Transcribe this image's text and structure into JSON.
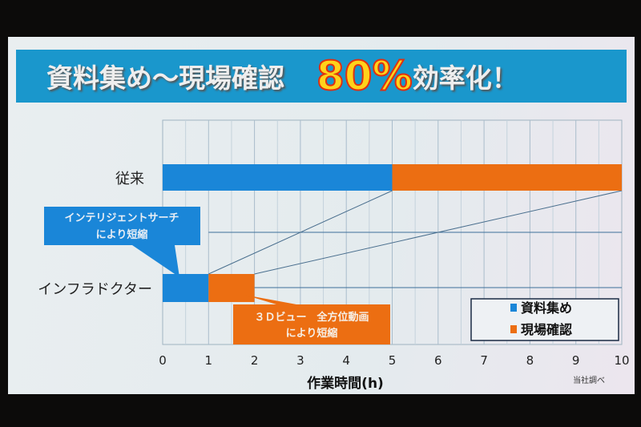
{
  "title": {
    "main": "資料集め～現場確認",
    "highlight": "80%",
    "suffix": "効率化！"
  },
  "chart_data": {
    "type": "bar",
    "orientation": "horizontal-stacked",
    "categories": [
      "従来",
      "インフラドクター"
    ],
    "series": [
      {
        "name": "資料集め",
        "values": [
          5,
          1
        ],
        "color": "#1a86d8"
      },
      {
        "name": "現場確認",
        "values": [
          5,
          1
        ],
        "color": "#ec6e12"
      }
    ],
    "xlabel": "作業時間(h)",
    "xlim": [
      0,
      10
    ],
    "xticks": [
      "0",
      "1",
      "2",
      "3",
      "4",
      "5",
      "6",
      "7",
      "8",
      "9",
      "10"
    ],
    "grid": true,
    "legend": "bottom-right",
    "annotations": [
      {
        "lines": [
          "インテリジェントサーチ",
          "により短縮"
        ],
        "color": "#1a86d8"
      },
      {
        "lines": [
          "３Ｄビュー　全方位動画",
          "により短縮"
        ],
        "color": "#ec6e12"
      }
    ],
    "source": "当社調べ"
  }
}
